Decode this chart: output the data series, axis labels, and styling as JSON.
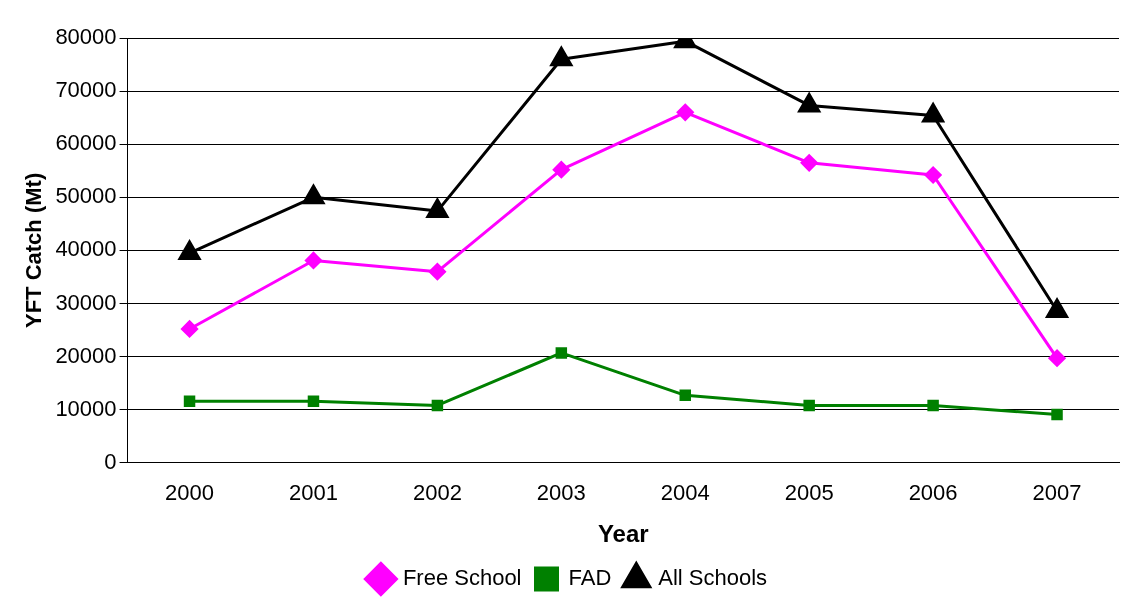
{
  "chart_data": {
    "type": "line",
    "xlabel": "Year",
    "ylabel": "YFT Catch (Mt)",
    "categories": [
      "2000",
      "2001",
      "2002",
      "2003",
      "2004",
      "2005",
      "2006",
      "2007"
    ],
    "series": [
      {
        "name": "Free School",
        "color": "#ff00ff",
        "marker": "diamond",
        "values": [
          25200,
          38100,
          36000,
          55200,
          66000,
          56500,
          54200,
          19700
        ]
      },
      {
        "name": "FAD",
        "color": "#008000",
        "marker": "square",
        "values": [
          11600,
          11600,
          10800,
          20700,
          12700,
          10800,
          10800,
          9100
        ]
      },
      {
        "name": "All Schools",
        "color": "#000000",
        "marker": "triangle",
        "values": [
          39500,
          50000,
          47400,
          76000,
          79400,
          67300,
          65400,
          28600
        ]
      }
    ],
    "ylim": [
      0,
      80000
    ],
    "yticks": [
      0,
      10000,
      20000,
      30000,
      40000,
      50000,
      60000,
      70000,
      80000
    ],
    "grid": "y",
    "legend": "bottom",
    "line_style": "solid"
  }
}
